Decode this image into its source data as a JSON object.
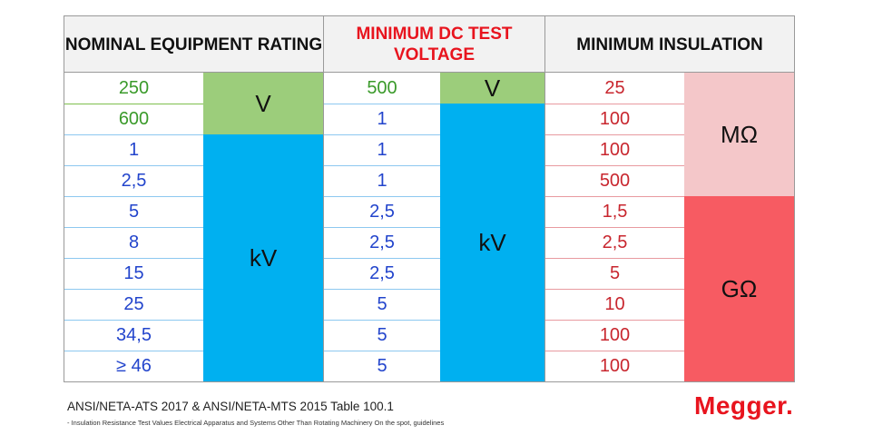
{
  "headers": {
    "nominal": "NOMINAL EQUIPMENT RATING",
    "test_voltage": "MINIMUM DC TEST VOLTAGE",
    "insulation": "MINIMUM INSULATION"
  },
  "rows": [
    {
      "rating": "250",
      "test": "500",
      "insulation": "25"
    },
    {
      "rating": "600",
      "test": "1",
      "insulation": "100"
    },
    {
      "rating": "1",
      "test": "1",
      "insulation": "100"
    },
    {
      "rating": "2,5",
      "test": "1",
      "insulation": "500"
    },
    {
      "rating": "5",
      "test": "2,5",
      "insulation": "1,5"
    },
    {
      "rating": "8",
      "test": "2,5",
      "insulation": "2,5"
    },
    {
      "rating": "15",
      "test": "2,5",
      "insulation": "5"
    },
    {
      "rating": "25",
      "test": "5",
      "insulation": "10"
    },
    {
      "rating": "34,5",
      "test": "5",
      "insulation": "100"
    },
    {
      "rating": "≥ 46",
      "test": "5",
      "insulation": "100"
    }
  ],
  "units": {
    "rating_v": "V",
    "rating_kv": "kV",
    "test_v": "V",
    "test_kv": "kV",
    "ins_mohm": "MΩ",
    "ins_gohm": "GΩ"
  },
  "colors": {
    "green_unit": "#9ccd7b",
    "blue_unit": "#00b0f0",
    "pink_unit": "#f4c7c9",
    "red_unit": "#f75b62",
    "header_bg": "#f2f2f2",
    "header_red_text": "#e8141e"
  },
  "footer": {
    "source": "ANSI/NETA-ATS 2017 & ANSI/NETA-MTS 2015 Table 100.1",
    "note": "- Insulation Resistance Test Values Electrical Apparatus and Systems Other Than Rotating Machinery On the spot, guidelines",
    "logo_text": "Megger",
    "logo_dot": "."
  }
}
